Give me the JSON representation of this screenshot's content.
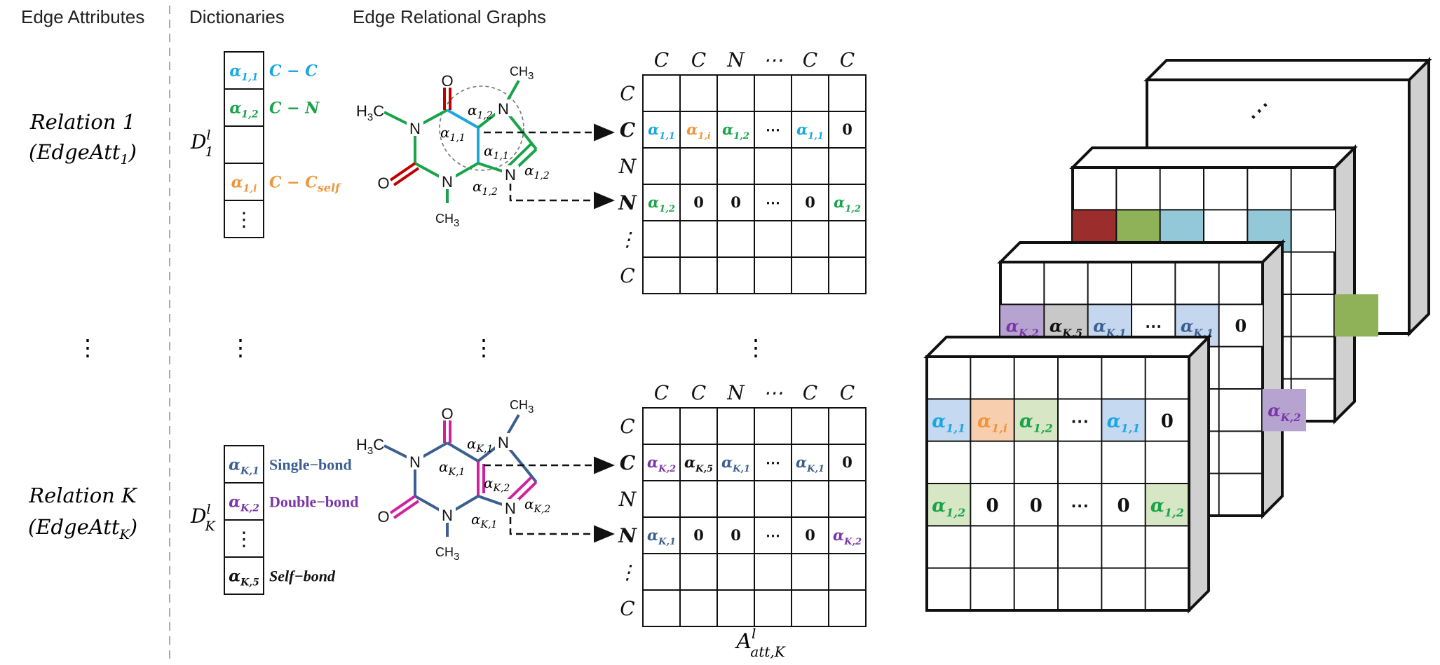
{
  "headers": {
    "edge_attributes": "Edge Attributes",
    "dictionaries": "Dictionaries",
    "edge_relational_graphs": "Edge Relational Graphs"
  },
  "colors": {
    "cc": "#1aa7e0",
    "cn": "#19a34a",
    "self": "#f0943a",
    "single": "#3b5f8f",
    "double": "#7a35a8",
    "selfbond": "#111111",
    "red_bond": "#c00000",
    "pink_bond": "#d020a0",
    "green_bond": "#19a34a",
    "navy_bond": "#2f4f6f"
  },
  "relation1": {
    "name": "Relation 1",
    "edgeatt": "EdgeAtt",
    "edgeatt_sub": "1",
    "dict_label": "D",
    "dict_sup": "l",
    "dict_sub": "1",
    "dict_entries": [
      {
        "alpha": "α",
        "idx": "1,1",
        "label": "C − C",
        "color": "cc"
      },
      {
        "alpha": "α",
        "idx": "1,2",
        "label": "C − N",
        "color": "cn"
      },
      {
        "alpha": "",
        "idx": "",
        "label": "",
        "color": "cc"
      },
      {
        "alpha": "α",
        "idx": "1,i",
        "label": "C − C",
        "label_sub": "self",
        "color": "self"
      },
      {
        "alpha": "⋮",
        "idx": "",
        "label": "",
        "color": "selfbond"
      }
    ],
    "mol_labels": {
      "O_top": "O",
      "O_left": "O",
      "H3C": "H",
      "H3C_sub": "3",
      "H3C_c": "C",
      "CH3_top": "CH",
      "CH3_top_sub": "3",
      "CH3_bottom": "CH",
      "CH3_bottom_sub": "3",
      "N": "N",
      "a12_top": "α",
      "a12_top_idx": "1,2",
      "a11_left": "α",
      "a11_left_idx": "1,1",
      "a11_right": "α",
      "a11_right_idx": "1,1",
      "a12_right": "α",
      "a12_right_idx": "1,2",
      "a12_bottom": "α",
      "a12_bottom_idx": "1,2"
    },
    "col_labels": [
      "C",
      "C",
      "N",
      "⋯",
      "C",
      "C"
    ],
    "row_labels": [
      "C",
      "C",
      "N",
      "N",
      "⋮",
      "C"
    ],
    "row_bold": [
      false,
      true,
      false,
      true,
      false,
      false
    ],
    "row_C": [
      {
        "a": "α",
        "i": "1,1",
        "c": "cc"
      },
      {
        "a": "α",
        "i": "1,i",
        "c": "self"
      },
      {
        "a": "α",
        "i": "1,2",
        "c": "cn"
      },
      {
        "a": "⋯",
        "i": "",
        "c": "selfbond"
      },
      {
        "a": "α",
        "i": "1,1",
        "c": "cc"
      },
      {
        "a": "0",
        "i": "",
        "c": "selfbond"
      }
    ],
    "row_N": [
      {
        "a": "α",
        "i": "1,2",
        "c": "cn"
      },
      {
        "a": "0",
        "i": "",
        "c": "selfbond"
      },
      {
        "a": "0",
        "i": "",
        "c": "selfbond"
      },
      {
        "a": "⋯",
        "i": "",
        "c": "selfbond"
      },
      {
        "a": "0",
        "i": "",
        "c": "selfbond"
      },
      {
        "a": "α",
        "i": "1,2",
        "c": "cn"
      }
    ]
  },
  "ellipsis": "⋮",
  "relationK": {
    "name": "Relation K",
    "edgeatt": "EdgeAtt",
    "edgeatt_sub": "K",
    "dict_label": "D",
    "dict_sup": "l",
    "dict_sub": "K",
    "dict_entries": [
      {
        "alpha": "α",
        "idx": "K,1",
        "label": "Single−bond",
        "color": "single"
      },
      {
        "alpha": "α",
        "idx": "K,2",
        "label": "Double−bond",
        "color": "double"
      },
      {
        "alpha": "⋮",
        "idx": "",
        "label": "",
        "color": "selfbond"
      },
      {
        "alpha": "α",
        "idx": "K,5",
        "label": "Self−bond",
        "color": "selfbond"
      }
    ],
    "mol_labels": {
      "O_top": "O",
      "O_left": "O",
      "H3C": "H",
      "H3C_sub": "3",
      "H3C_c": "C",
      "CH3_top": "CH",
      "CH3_top_sub": "3",
      "CH3_bottom": "CH",
      "CH3_bottom_sub": "3",
      "N": "N",
      "a_top": "α",
      "a_top_idx": "K,1",
      "a_left": "α",
      "a_left_idx": "K,1",
      "a_mid": "α",
      "a_mid_idx": "K,2",
      "a_right": "α",
      "a_right_idx": "K,2",
      "a_bottom": "α",
      "a_bottom_idx": "K,1"
    },
    "col_labels": [
      "C",
      "C",
      "N",
      "⋯",
      "C",
      "C"
    ],
    "row_labels": [
      "C",
      "C",
      "N",
      "N",
      "⋮",
      "C"
    ],
    "row_bold": [
      false,
      true,
      false,
      true,
      false,
      false
    ],
    "row_C": [
      {
        "a": "α",
        "i": "K,2",
        "c": "double"
      },
      {
        "a": "α",
        "i": "K,5",
        "c": "selfbond"
      },
      {
        "a": "α",
        "i": "K,1",
        "c": "single"
      },
      {
        "a": "⋯",
        "i": "",
        "c": "selfbond"
      },
      {
        "a": "α",
        "i": "K,1",
        "c": "single"
      },
      {
        "a": "0",
        "i": "",
        "c": "selfbond"
      }
    ],
    "row_N": [
      {
        "a": "α",
        "i": "K,1",
        "c": "single"
      },
      {
        "a": "0",
        "i": "",
        "c": "selfbond"
      },
      {
        "a": "0",
        "i": "",
        "c": "selfbond"
      },
      {
        "a": "⋯",
        "i": "",
        "c": "selfbond"
      },
      {
        "a": "0",
        "i": "",
        "c": "selfbond"
      },
      {
        "a": "α",
        "i": "K,2",
        "c": "double"
      }
    ],
    "matrix_label": "A",
    "matrix_sup": "l",
    "matrix_sub": "att,K"
  },
  "cubes": {
    "back_dots": "⋯",
    "mid_row_colors": [
      "#9b2d2d",
      "#8fb158",
      "#92c8d8",
      "#ffffff",
      "#92c8d8",
      "#ffffff"
    ],
    "mid_right_green": "#8fb158",
    "third_row": [
      {
        "a": "α",
        "i": "K,2",
        "c": "double",
        "bg": "#b7a3d0"
      },
      {
        "a": "α",
        "i": "K,5",
        "c": "selfbond",
        "bg": "#c8c8c8"
      },
      {
        "a": "α",
        "i": "K,1",
        "c": "single",
        "bg": "#c5d7ee"
      },
      {
        "a": "⋯",
        "i": "",
        "c": "selfbond",
        "bg": "#ffffff"
      },
      {
        "a": "α",
        "i": "K,1",
        "c": "single",
        "bg": "#c5d7ee"
      },
      {
        "a": "0",
        "i": "",
        "c": "selfbond",
        "bg": "#ffffff"
      }
    ],
    "third_right": {
      "a": "α",
      "i": "K,2",
      "c": "double",
      "bg": "#b7a3d0"
    },
    "front_row_C": [
      {
        "a": "α",
        "i": "1,1",
        "c": "cc",
        "bg": "#c5d9f0"
      },
      {
        "a": "α",
        "i": "1,i",
        "c": "self",
        "bg": "#f8cfae"
      },
      {
        "a": "α",
        "i": "1,2",
        "c": "cn",
        "bg": "#d7e6c4"
      },
      {
        "a": "⋯",
        "i": "",
        "c": "selfbond",
        "bg": "#ffffff"
      },
      {
        "a": "α",
        "i": "1,1",
        "c": "cc",
        "bg": "#c5d9f0"
      },
      {
        "a": "0",
        "i": "",
        "c": "selfbond",
        "bg": "#ffffff"
      }
    ],
    "front_row_N": [
      {
        "a": "α",
        "i": "1,2",
        "c": "cn",
        "bg": "#d7e6c4"
      },
      {
        "a": "0",
        "i": "",
        "c": "selfbond",
        "bg": "#ffffff"
      },
      {
        "a": "0",
        "i": "",
        "c": "selfbond",
        "bg": "#ffffff"
      },
      {
        "a": "⋯",
        "i": "",
        "c": "selfbond",
        "bg": "#ffffff"
      },
      {
        "a": "0",
        "i": "",
        "c": "selfbond",
        "bg": "#ffffff"
      },
      {
        "a": "α",
        "i": "1,2",
        "c": "cn",
        "bg": "#d7e6c4"
      }
    ]
  }
}
